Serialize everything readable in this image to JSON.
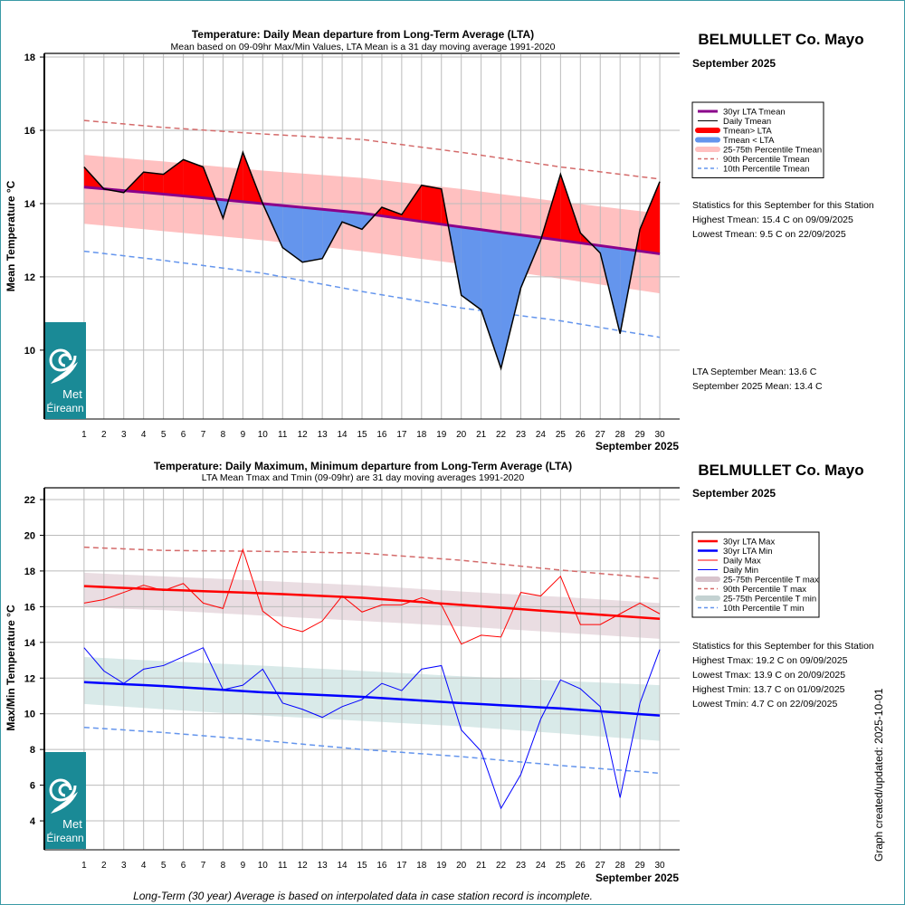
{
  "colors": {
    "lta_mean": "#8b008b",
    "above": "#ff0000",
    "below": "#6495ed",
    "band_mean": "#ffc0c0",
    "p90": "#d46a6a",
    "p10": "#6495ed",
    "lta_max": "#ff0000",
    "lta_min": "#0000ff",
    "band_max": "#eadde2",
    "band_min": "#d9eae9",
    "logo": "#1a8a96"
  },
  "footer": "Long-Term (30 year) Average is based on interpolated data in case station record is incomplete.",
  "updated": "Graph created/updated:  2025-10-01",
  "logo_text": [
    "Met",
    "Éireann"
  ],
  "chart_data": [
    {
      "type": "area",
      "title": "Temperature: Daily Mean departure from Long-Term Average (LTA)",
      "subtitle": "Mean based on 09-09hr Max/Min Values, LTA Mean is a 31 day moving average 1991-2020",
      "station": "BELMULLET Co. Mayo",
      "month": "September 2025",
      "xlabel": "September 2025",
      "ylabel": "Mean Temperature °C",
      "xlim": [
        -1,
        31
      ],
      "ylim": [
        8.12,
        18.1
      ],
      "yticks": [
        10,
        12,
        14,
        16,
        18
      ],
      "xticks": [
        1,
        2,
        3,
        4,
        5,
        6,
        7,
        8,
        9,
        10,
        11,
        12,
        13,
        14,
        15,
        16,
        17,
        18,
        19,
        20,
        21,
        22,
        23,
        24,
        25,
        26,
        27,
        28,
        29,
        30
      ],
      "grid": true,
      "legend_position": "right",
      "legend": [
        "30yr LTA Tmean",
        "Daily Tmean",
        "Tmean> LTA",
        "Tmean < LTA",
        "25-75th Percentile Tmean",
        "90th Percentile Tmean",
        "10th Percentile Tmean"
      ],
      "daily": [
        15.0,
        14.4,
        14.3,
        14.86,
        14.8,
        15.2,
        15.0,
        13.6,
        15.4,
        14.0,
        12.8,
        12.4,
        12.5,
        13.5,
        13.3,
        13.9,
        13.7,
        14.5,
        14.4,
        11.5,
        11.1,
        9.5,
        11.7,
        13.0,
        14.8,
        13.2,
        12.65,
        10.45,
        13.3,
        14.6
      ],
      "reference_days": [
        1,
        5,
        10,
        15,
        20,
        25,
        30
      ],
      "lta": [
        14.45,
        14.26,
        14.0,
        13.74,
        13.36,
        13.0,
        12.63
      ],
      "p25": [
        13.45,
        13.25,
        13.0,
        12.7,
        12.35,
        11.95,
        11.55
      ],
      "p75": [
        15.33,
        15.15,
        14.9,
        14.7,
        14.4,
        14.05,
        13.73
      ],
      "p90": [
        16.27,
        16.08,
        15.9,
        15.75,
        15.4,
        15.0,
        14.67
      ],
      "p10": [
        12.7,
        12.45,
        12.1,
        11.6,
        11.15,
        10.8,
        10.35
      ],
      "stats": [
        "Statistics for this September for this Station",
        "Highest Tmean: 15.4 C on 09/09/2025",
        "Lowest Tmean: 9.5 C on 22/09/2025"
      ],
      "means": [
        "LTA September Mean: 13.6 C",
        "September 2025 Mean: 13.4 C"
      ]
    },
    {
      "type": "line",
      "title": "Temperature: Daily Maximum, Minimum departure from Long-Term Average (LTA)",
      "subtitle": "LTA Mean Tmax and Tmin (09-09hr) are 31 day moving averages 1991-2020",
      "station": "BELMULLET Co. Mayo",
      "month": "September 2025",
      "xlabel": "September 2025",
      "ylabel": "Max/Min Temperature °C",
      "xlim": [
        -1,
        31
      ],
      "ylim": [
        2.38,
        22.66
      ],
      "yticks": [
        4,
        6,
        8,
        10,
        12,
        14,
        16,
        18,
        20,
        22
      ],
      "xticks": [
        1,
        2,
        3,
        4,
        5,
        6,
        7,
        8,
        9,
        10,
        11,
        12,
        13,
        14,
        15,
        16,
        17,
        18,
        19,
        20,
        21,
        22,
        23,
        24,
        25,
        26,
        27,
        28,
        29,
        30
      ],
      "grid": true,
      "legend_position": "right",
      "legend": [
        "30yr LTA Max",
        "30yr LTA Min",
        "Daily Max",
        "Daily Min",
        "25-75th Percentile T max",
        "90th Percentile T max",
        "25-75th Percentile T min",
        "10th Percentile T min"
      ],
      "tmax": [
        16.2,
        16.4,
        16.8,
        17.2,
        16.9,
        17.3,
        16.2,
        15.9,
        19.2,
        15.75,
        14.9,
        14.6,
        15.2,
        16.6,
        15.7,
        16.1,
        16.1,
        16.5,
        16.1,
        13.9,
        14.4,
        14.3,
        16.8,
        16.6,
        17.7,
        15.0,
        15.0,
        15.6,
        16.2,
        15.6
      ],
      "tmin": [
        13.7,
        12.4,
        11.7,
        12.5,
        12.7,
        13.2,
        13.7,
        11.35,
        11.6,
        12.5,
        10.6,
        10.25,
        9.8,
        10.4,
        10.8,
        11.7,
        11.3,
        12.5,
        12.7,
        9.1,
        7.9,
        4.7,
        6.6,
        9.7,
        11.9,
        11.4,
        10.4,
        5.3,
        10.6,
        13.6
      ],
      "reference_days": [
        1,
        5,
        10,
        15,
        20,
        25,
        30
      ],
      "lta_max": [
        17.15,
        16.95,
        16.75,
        16.5,
        16.1,
        15.7,
        15.32
      ],
      "lta_min": [
        11.77,
        11.55,
        11.2,
        10.95,
        10.6,
        10.3,
        9.9
      ],
      "p25_max": [
        15.97,
        15.8,
        15.5,
        15.2,
        14.9,
        14.55,
        14.2
      ],
      "p75_max": [
        17.9,
        17.7,
        17.45,
        17.2,
        16.85,
        16.55,
        16.2
      ],
      "p90_max": [
        19.33,
        19.15,
        19.1,
        19.0,
        18.6,
        18.05,
        17.57
      ],
      "p25_min": [
        10.55,
        10.25,
        9.9,
        9.6,
        9.3,
        8.9,
        8.48
      ],
      "p75_min": [
        13.18,
        12.95,
        12.7,
        12.4,
        12.1,
        11.85,
        11.6
      ],
      "p10_min": [
        9.24,
        8.95,
        8.5,
        8.0,
        7.6,
        7.1,
        6.67
      ],
      "stats": [
        "Statistics for this September for this Station",
        "Highest Tmax: 19.2 C on 09/09/2025",
        "Lowest Tmax: 13.9 C on 20/09/2025",
        "Highest Tmin: 13.7 C on 01/09/2025",
        "Lowest Tmin: 4.7 C on 22/09/2025"
      ]
    }
  ]
}
